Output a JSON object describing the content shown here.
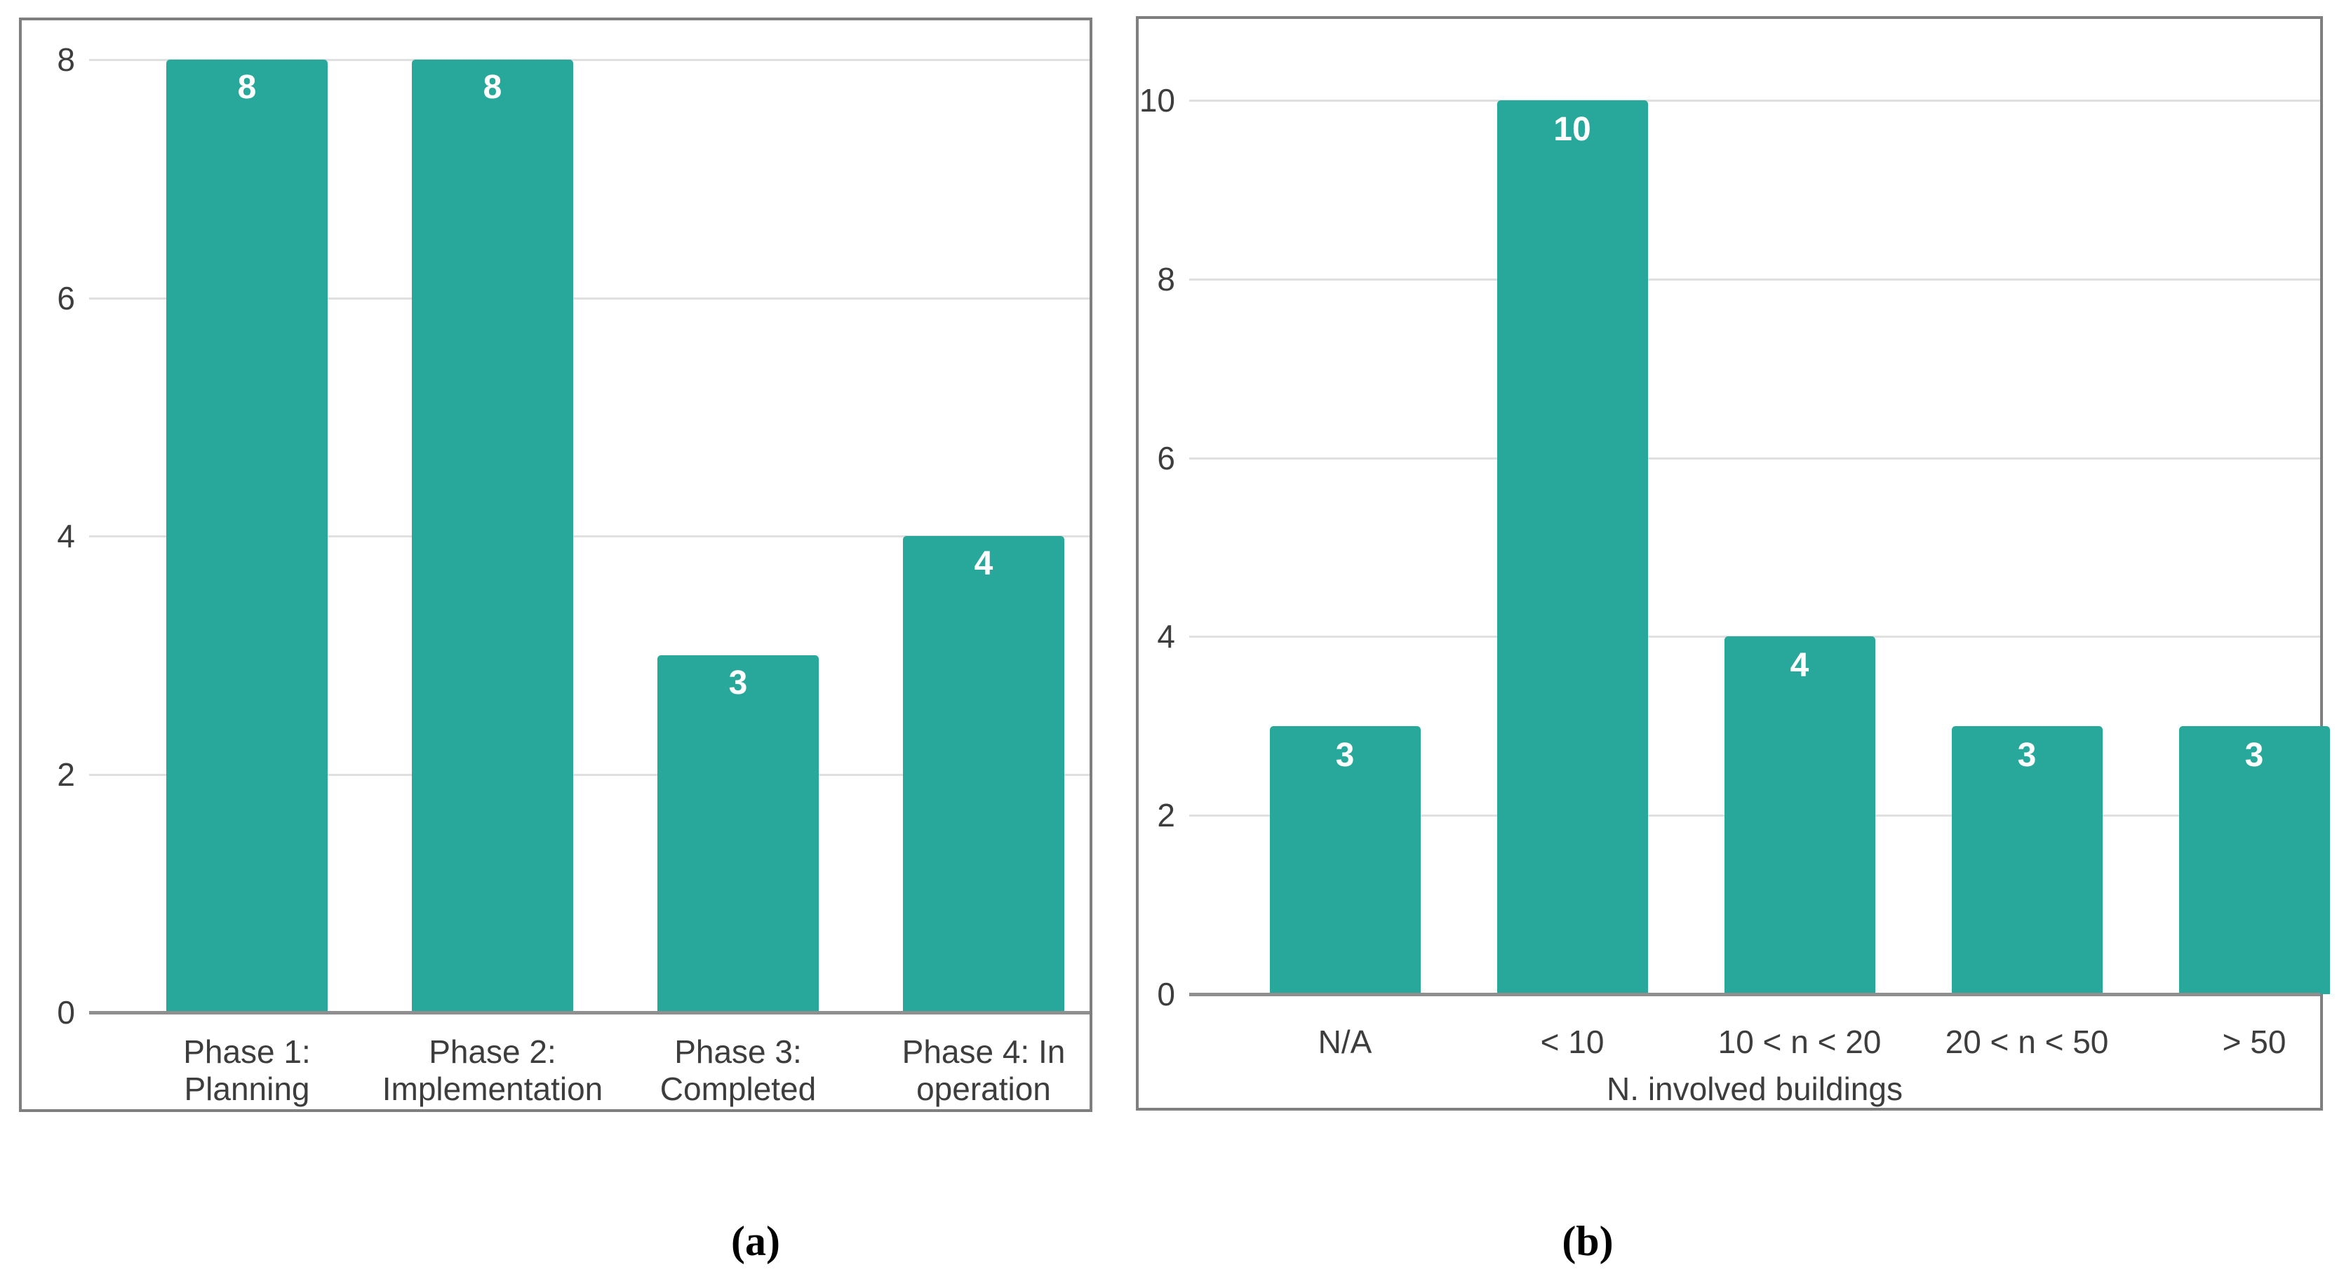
{
  "figure": {
    "background": "#ffffff",
    "captions": [
      {
        "id": "a",
        "label": "(a)"
      },
      {
        "id": "b",
        "label": "(b)"
      }
    ]
  },
  "style": {
    "bar_color": "#28a89b",
    "grid_color": "#e0e0e0",
    "baseline_color": "#8f8f8f",
    "panel_border_color": "#7f7f7f",
    "axis_text_color": "#3d3d3d",
    "value_label_color": "#ffffff"
  },
  "chart_data": [
    {
      "id": "a",
      "type": "bar",
      "title": "",
      "categories": [
        "Phase 1: Planning",
        "Phase 2: Implementation",
        "Phase 3: Completed",
        "Phase 4: In operation"
      ],
      "category_lines": [
        [
          "Phase 1:",
          "Planning"
        ],
        [
          "Phase 2:",
          "Implementation"
        ],
        [
          "Phase 3:",
          "Completed"
        ],
        [
          "Phase 4: In",
          "operation"
        ]
      ],
      "values": [
        8,
        8,
        3,
        4
      ],
      "bar_labels": [
        "8",
        "8",
        "3",
        "4"
      ],
      "xlabel": "",
      "ylabel": "",
      "ylim": [
        0,
        8
      ],
      "yticks": [
        0,
        2,
        4,
        6,
        8
      ],
      "grid": true,
      "legend": "none"
    },
    {
      "id": "b",
      "type": "bar",
      "title": "",
      "categories": [
        "N/A",
        "< 10",
        "10 < n < 20",
        "20 < n < 50",
        "> 50"
      ],
      "category_lines": [
        [
          "N/A"
        ],
        [
          "< 10"
        ],
        [
          "10 < n < 20"
        ],
        [
          "20 < n < 50"
        ],
        [
          "> 50"
        ]
      ],
      "values": [
        3,
        10,
        4,
        3,
        3
      ],
      "bar_labels": [
        "3",
        "10",
        "4",
        "3",
        "3"
      ],
      "xlabel": "N. involved buildings",
      "ylabel": "",
      "ylim": [
        0,
        10
      ],
      "yticks": [
        0,
        2,
        4,
        6,
        8,
        10
      ],
      "grid": true,
      "legend": "none"
    }
  ]
}
